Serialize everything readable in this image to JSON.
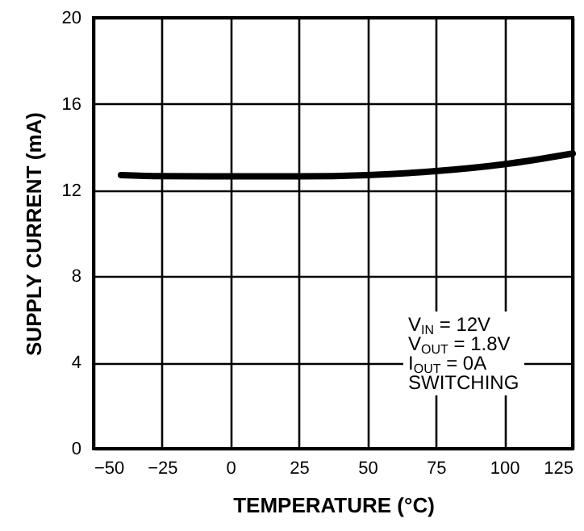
{
  "chart_data": {
    "type": "line",
    "xlabel": "TEMPERATURE (°C)",
    "ylabel": "SUPPLY CURRENT (mA)",
    "x": [
      -40,
      -25,
      0,
      25,
      50,
      75,
      100,
      125
    ],
    "series": [
      {
        "color": "#000000",
        "values": [
          12.7,
          12.65,
          12.64,
          12.64,
          12.7,
          12.88,
          13.2,
          13.7
        ]
      }
    ],
    "xlim": [
      -50,
      125
    ],
    "xticks": [
      -50,
      -25,
      0,
      25,
      50,
      75,
      100,
      125
    ],
    "ylim": [
      0,
      20
    ],
    "yticks": [
      0,
      4,
      8,
      12,
      16,
      20
    ],
    "grid": true,
    "marker": "none",
    "line_style": "solid",
    "annotations": [
      "V$_{IN}$ = 12V",
      "V$_{OUT}$ = 1.8V",
      "I$_{OUT}$ = 0A",
      "SWITCHING"
    ]
  }
}
